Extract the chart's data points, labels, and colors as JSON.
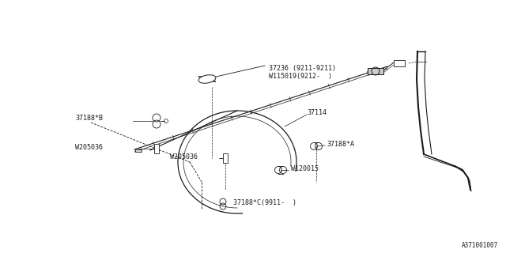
{
  "bg_color": "#ffffff",
  "line_color": "#1a1a1a",
  "diagram_id": "A371001007",
  "font_size": 6.0,
  "parts": {
    "37236_label": "37236 (9211-9211)\nW115019(9212-  )",
    "37114_label": "37114",
    "37188A_label": "37188*A",
    "37188B_label": "37188*B",
    "W205036a_label": "W205036",
    "W205036b_label": "W205036",
    "W120015_label": "W120015",
    "37188C_label": "37188*C(9911-  )"
  }
}
